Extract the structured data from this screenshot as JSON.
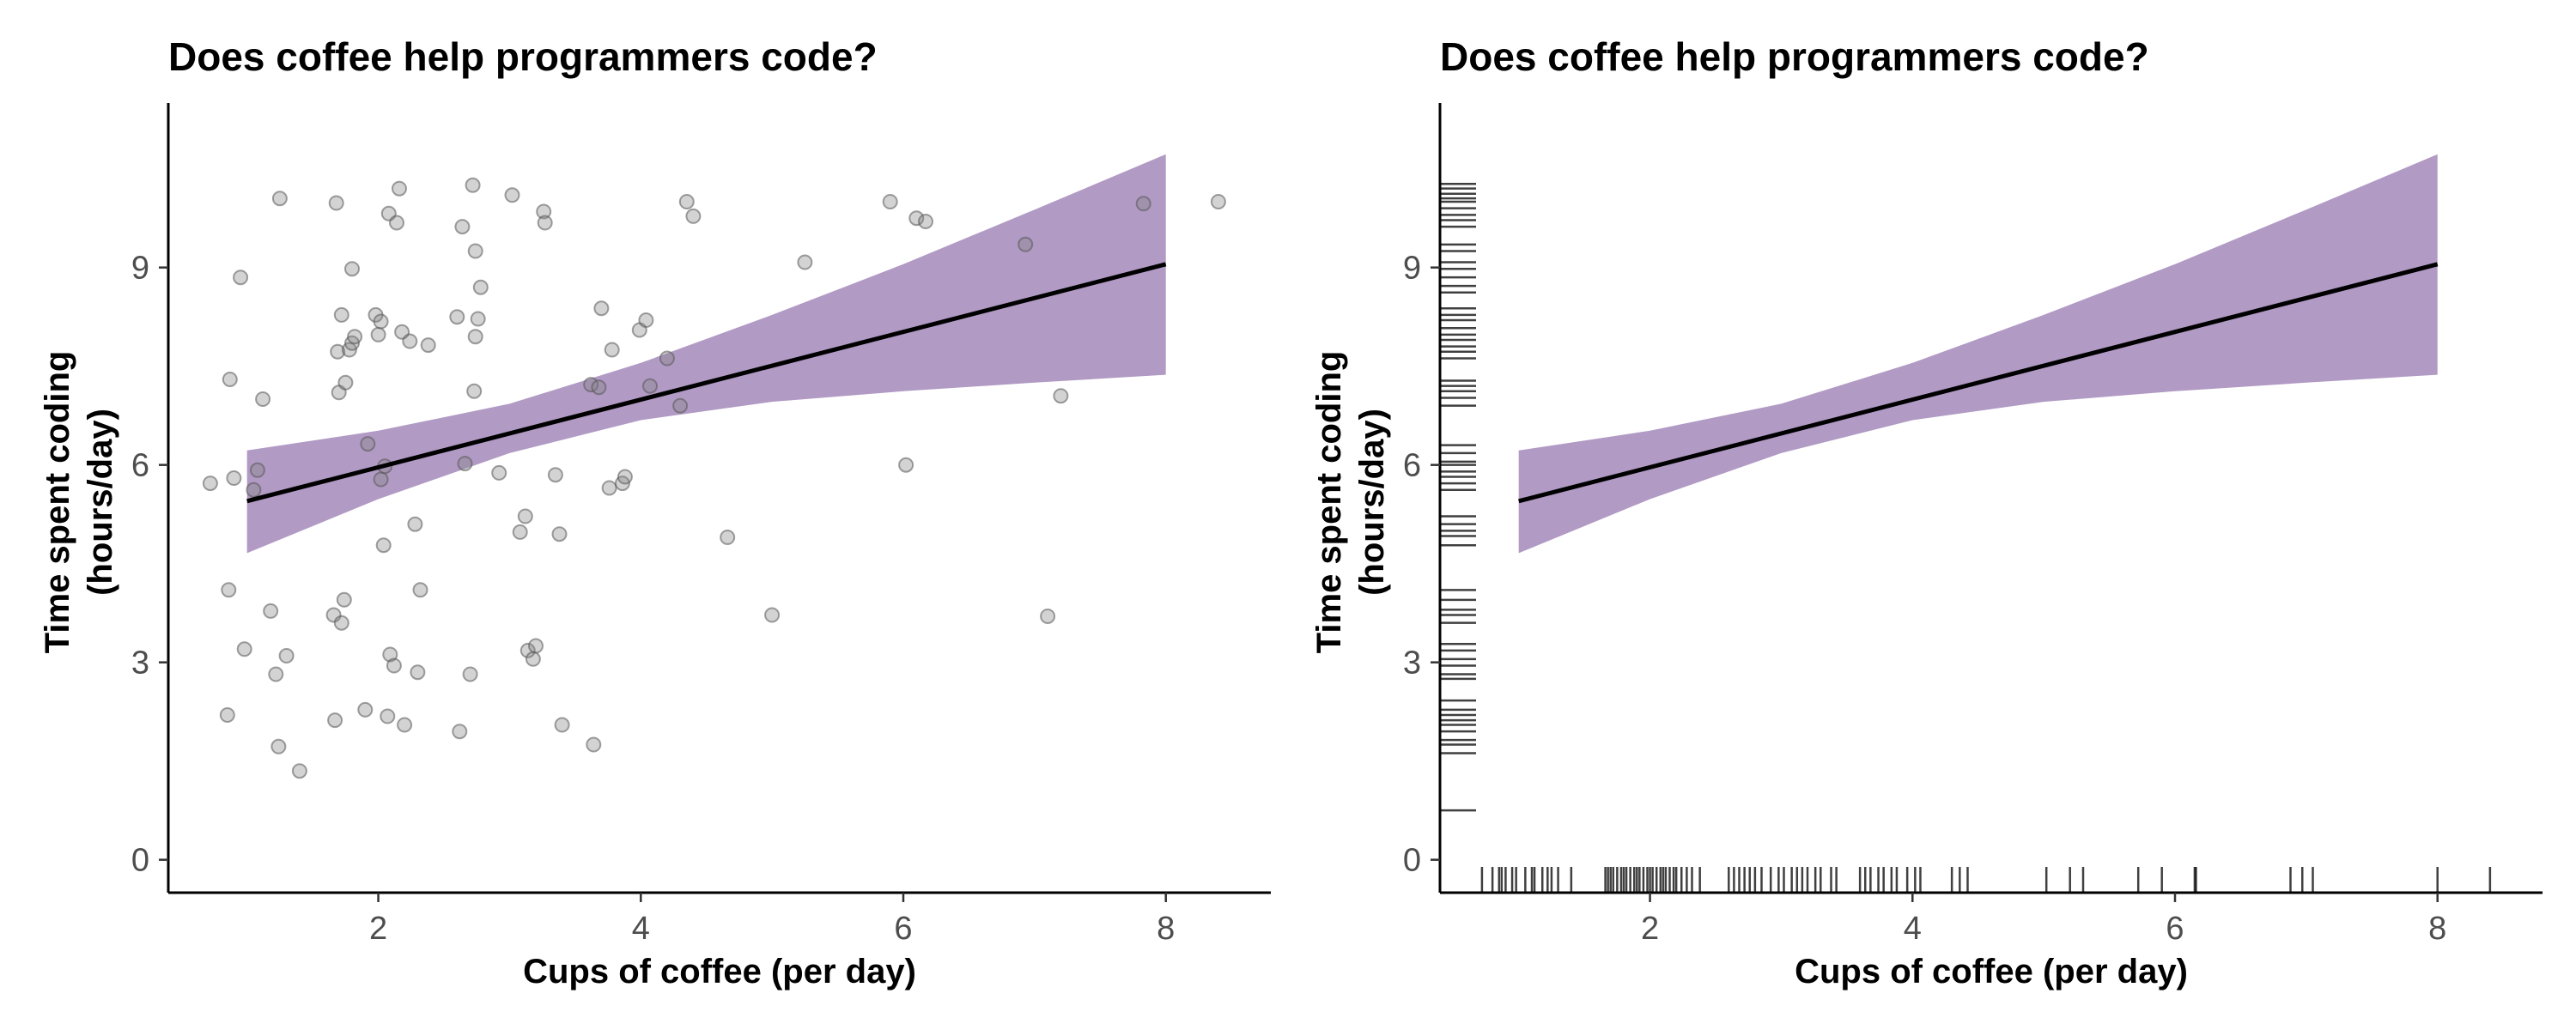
{
  "chart_data": [
    {
      "type": "scatter",
      "title": "Does coffee help programmers code?",
      "xlabel": "Cups of coffee (per day)",
      "ylabel_line1": "Time spent coding",
      "ylabel_line2": "(hours/day)",
      "xlim": [
        0.4,
        8.8
      ],
      "ylim": [
        -0.5,
        11.5
      ],
      "xticks": [
        2,
        4,
        6,
        8
      ],
      "yticks": [
        0,
        3,
        6,
        9
      ],
      "grid": false,
      "band_color": "#b19ac4",
      "point_color": "#808080",
      "points": [
        [
          0.72,
          5.72
        ],
        [
          0.85,
          2.2
        ],
        [
          0.86,
          4.1
        ],
        [
          0.87,
          7.3
        ],
        [
          0.9,
          5.8
        ],
        [
          0.95,
          8.85
        ],
        [
          0.98,
          3.2
        ],
        [
          1.05,
          5.62
        ],
        [
          1.08,
          5.92
        ],
        [
          1.12,
          7.0
        ],
        [
          1.18,
          3.78
        ],
        [
          1.22,
          2.82
        ],
        [
          1.24,
          1.72
        ],
        [
          1.25,
          10.05
        ],
        [
          1.3,
          3.1
        ],
        [
          1.4,
          1.35
        ],
        [
          1.66,
          3.72
        ],
        [
          1.67,
          2.12
        ],
        [
          1.68,
          9.98
        ],
        [
          1.69,
          7.72
        ],
        [
          1.7,
          7.1
        ],
        [
          1.72,
          8.28
        ],
        [
          1.72,
          3.6
        ],
        [
          1.74,
          3.95
        ],
        [
          1.75,
          7.25
        ],
        [
          1.78,
          7.75
        ],
        [
          1.8,
          7.85
        ],
        [
          1.8,
          8.98
        ],
        [
          1.82,
          7.95
        ],
        [
          1.9,
          2.28
        ],
        [
          1.92,
          6.32
        ],
        [
          1.98,
          8.28
        ],
        [
          2.0,
          7.98
        ],
        [
          2.02,
          8.18
        ],
        [
          2.02,
          5.78
        ],
        [
          2.04,
          4.78
        ],
        [
          2.05,
          5.98
        ],
        [
          2.07,
          2.18
        ],
        [
          2.08,
          9.82
        ],
        [
          2.09,
          3.12
        ],
        [
          2.12,
          2.95
        ],
        [
          2.14,
          9.68
        ],
        [
          2.16,
          10.2
        ],
        [
          2.18,
          8.02
        ],
        [
          2.2,
          2.05
        ],
        [
          2.24,
          7.88
        ],
        [
          2.28,
          5.1
        ],
        [
          2.3,
          2.85
        ],
        [
          2.32,
          4.1
        ],
        [
          2.38,
          7.82
        ],
        [
          2.6,
          8.25
        ],
        [
          2.62,
          1.95
        ],
        [
          2.64,
          9.62
        ],
        [
          2.66,
          6.02
        ],
        [
          2.7,
          2.82
        ],
        [
          2.72,
          10.25
        ],
        [
          2.73,
          7.12
        ],
        [
          2.74,
          7.95
        ],
        [
          2.74,
          9.25
        ],
        [
          2.76,
          8.22
        ],
        [
          2.78,
          8.7
        ],
        [
          2.92,
          5.88
        ],
        [
          3.02,
          10.1
        ],
        [
          3.08,
          4.98
        ],
        [
          3.12,
          5.22
        ],
        [
          3.14,
          3.18
        ],
        [
          3.18,
          3.05
        ],
        [
          3.2,
          3.25
        ],
        [
          3.26,
          9.85
        ],
        [
          3.27,
          9.68
        ],
        [
          3.35,
          5.85
        ],
        [
          3.38,
          4.95
        ],
        [
          3.4,
          2.05
        ],
        [
          3.62,
          7.22
        ],
        [
          3.64,
          1.75
        ],
        [
          3.68,
          7.18
        ],
        [
          3.7,
          8.38
        ],
        [
          3.76,
          5.65
        ],
        [
          3.78,
          7.75
        ],
        [
          3.86,
          5.72
        ],
        [
          3.88,
          5.82
        ],
        [
          3.99,
          8.05
        ],
        [
          4.04,
          8.2
        ],
        [
          4.07,
          7.2
        ],
        [
          4.2,
          7.62
        ],
        [
          4.3,
          6.9
        ],
        [
          4.35,
          10.0
        ],
        [
          4.4,
          9.78
        ],
        [
          4.66,
          4.9
        ],
        [
          5.0,
          3.72
        ],
        [
          5.25,
          9.08
        ],
        [
          5.9,
          10.0
        ],
        [
          6.02,
          6.0
        ],
        [
          6.1,
          9.75
        ],
        [
          6.17,
          9.7
        ],
        [
          6.93,
          9.35
        ],
        [
          7.1,
          3.7
        ],
        [
          7.2,
          7.05
        ],
        [
          7.83,
          9.97
        ],
        [
          8.4,
          10.0
        ]
      ],
      "fit_line": [
        [
          1.0,
          5.45
        ],
        [
          8.0,
          9.05
        ]
      ],
      "band": {
        "x": [
          1.0,
          2.0,
          3.0,
          4.0,
          5.0,
          6.0,
          7.0,
          8.0
        ],
        "upper": [
          6.22,
          6.52,
          6.93,
          7.55,
          8.28,
          9.05,
          9.88,
          10.72
        ],
        "lower": [
          4.66,
          5.48,
          6.18,
          6.68,
          6.96,
          7.12,
          7.25,
          7.37
        ]
      }
    },
    {
      "type": "line",
      "title": "Does coffee help programmers code?",
      "xlabel": "Cups of coffee (per day)",
      "ylabel_line1": "Time spent coding",
      "ylabel_line2": "(hours/day)",
      "xlim": [
        0.4,
        8.8
      ],
      "ylim": [
        -0.5,
        11.5
      ],
      "xticks": [
        2,
        4,
        6,
        8
      ],
      "yticks": [
        0,
        3,
        6,
        9
      ],
      "grid": false,
      "band_color": "#b19ac4",
      "fit_line": [
        [
          1.0,
          5.45
        ],
        [
          8.0,
          9.05
        ]
      ],
      "band": {
        "x": [
          1.0,
          2.0,
          3.0,
          4.0,
          5.0,
          6.0,
          7.0,
          8.0
        ],
        "upper": [
          6.22,
          6.52,
          6.93,
          7.55,
          8.28,
          9.05,
          9.88,
          10.72
        ],
        "lower": [
          4.66,
          5.48,
          6.18,
          6.68,
          6.96,
          7.12,
          7.25,
          7.37
        ]
      },
      "rug_x": [
        0.72,
        0.8,
        0.85,
        0.87,
        0.9,
        0.95,
        0.98,
        1.05,
        1.1,
        1.12,
        1.18,
        1.22,
        1.25,
        1.3,
        1.4,
        1.66,
        1.68,
        1.7,
        1.72,
        1.75,
        1.78,
        1.8,
        1.82,
        1.85,
        1.88,
        1.9,
        1.92,
        1.95,
        1.98,
        2.0,
        2.02,
        2.05,
        2.08,
        2.1,
        2.12,
        2.15,
        2.18,
        2.2,
        2.24,
        2.28,
        2.32,
        2.38,
        2.6,
        2.64,
        2.68,
        2.72,
        2.76,
        2.8,
        2.85,
        2.92,
        2.98,
        3.02,
        3.08,
        3.12,
        3.16,
        3.2,
        3.26,
        3.3,
        3.38,
        3.42,
        3.6,
        3.64,
        3.68,
        3.74,
        3.78,
        3.84,
        3.88,
        3.96,
        4.02,
        4.06,
        4.3,
        4.36,
        4.42,
        5.02,
        5.2,
        5.3,
        5.72,
        5.9,
        6.15,
        6.16,
        6.88,
        6.97,
        7.05,
        8.0,
        8.4
      ],
      "rug_y": [
        0.75,
        1.62,
        1.75,
        1.82,
        1.95,
        2.05,
        2.12,
        2.2,
        2.28,
        2.42,
        2.75,
        2.82,
        2.95,
        3.05,
        3.18,
        3.28,
        3.6,
        3.72,
        3.8,
        3.95,
        4.1,
        4.78,
        4.92,
        5.0,
        5.1,
        5.22,
        5.62,
        5.72,
        5.82,
        5.9,
        6.0,
        6.05,
        6.18,
        6.3,
        6.9,
        7.02,
        7.12,
        7.2,
        7.28,
        7.62,
        7.72,
        7.8,
        7.9,
        7.98,
        8.08,
        8.2,
        8.28,
        8.38,
        8.62,
        8.72,
        8.85,
        8.98,
        9.08,
        9.25,
        9.35,
        9.62,
        9.72,
        9.8,
        9.9,
        10.0,
        10.05,
        10.12,
        10.2,
        10.27
      ]
    }
  ]
}
